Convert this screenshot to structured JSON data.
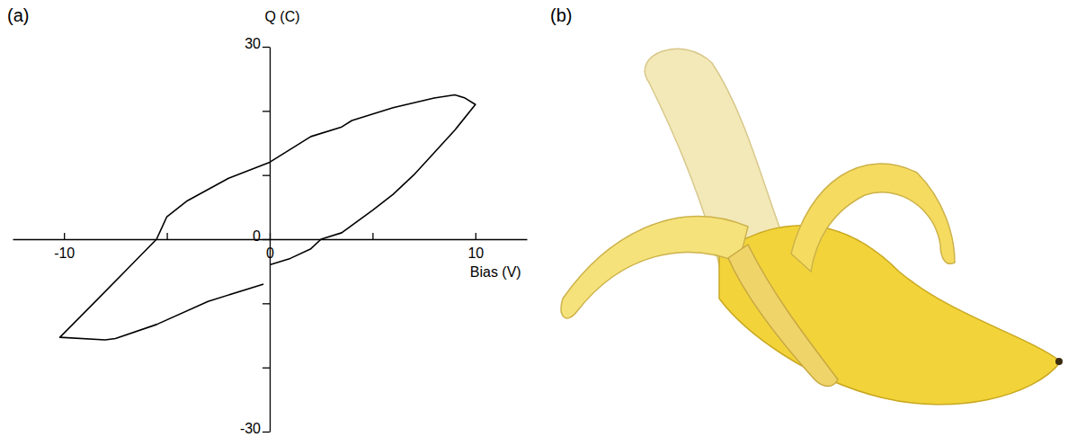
{
  "chart_data": {
    "type": "line",
    "label": "(a)",
    "x_label": "Bias (V)",
    "y_label": "Q (C)",
    "xlim": [
      -12.5,
      12.5
    ],
    "ylim": [
      -30,
      30
    ],
    "xticks": [
      -10,
      {
        "value": -5,
        "label": null
      },
      0,
      {
        "value": 5,
        "label": null
      },
      10
    ],
    "yticks": [
      -30,
      {
        "value": -20,
        "label": null
      },
      {
        "value": -10,
        "label": null
      },
      0,
      {
        "value": 10,
        "label": null
      },
      {
        "value": 20,
        "label": null
      },
      30
    ],
    "series": [
      {
        "color": "#000000",
        "x": [
          0,
          1,
          2,
          2.5,
          3.5,
          5,
          6,
          7,
          8,
          9,
          10,
          9.5,
          9,
          8,
          6,
          4,
          3.5,
          2,
          0,
          -2,
          -4,
          -5,
          -5.5,
          -7,
          -8.5,
          -10.2,
          -8,
          -7.5,
          -5.5,
          -3,
          -0.3
        ],
        "values": [
          -4,
          -3,
          -1.5,
          0,
          1,
          4.5,
          7,
          10,
          13.5,
          17,
          21,
          22,
          22.5,
          22,
          20.5,
          18.5,
          17.5,
          16,
          12,
          9.5,
          6,
          3.5,
          0,
          -4.9,
          -9.8,
          -15.3,
          -15.7,
          -15.5,
          -13.3,
          -9.7,
          -7
        ]
      }
    ]
  },
  "image_panel": {
    "label": "(b)"
  }
}
